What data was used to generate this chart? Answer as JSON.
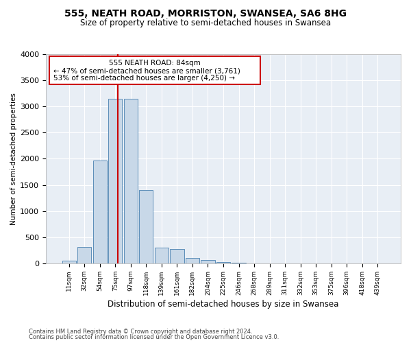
{
  "title": "555, NEATH ROAD, MORRISTON, SWANSEA, SA6 8HG",
  "subtitle": "Size of property relative to semi-detached houses in Swansea",
  "xlabel": "Distribution of semi-detached houses by size in Swansea",
  "ylabel": "Number of semi-detached properties",
  "footer_line1": "Contains HM Land Registry data © Crown copyright and database right 2024.",
  "footer_line2": "Contains public sector information licensed under the Open Government Licence v3.0.",
  "annotation_title": "555 NEATH ROAD: 84sqm",
  "annotation_line1": "← 47% of semi-detached houses are smaller (3,761)",
  "annotation_line2": "53% of semi-detached houses are larger (4,250) →",
  "bar_labels": [
    "11sqm",
    "32sqm",
    "54sqm",
    "75sqm",
    "97sqm",
    "118sqm",
    "139sqm",
    "161sqm",
    "182sqm",
    "204sqm",
    "225sqm",
    "246sqm",
    "268sqm",
    "289sqm",
    "311sqm",
    "332sqm",
    "353sqm",
    "375sqm",
    "396sqm",
    "418sqm",
    "439sqm"
  ],
  "bar_values": [
    55,
    310,
    1970,
    3150,
    3150,
    1400,
    300,
    280,
    110,
    70,
    30,
    10,
    5,
    5,
    3,
    2,
    1,
    1,
    1,
    1,
    1
  ],
  "property_line_x": 3.15,
  "bar_color": "#c8d8e8",
  "bar_edge_color": "#5b8db8",
  "property_line_color": "#cc0000",
  "annotation_box_color": "#cc0000",
  "background_color": "#e8eef5",
  "ylim": [
    0,
    4000
  ],
  "yticks": [
    0,
    500,
    1000,
    1500,
    2000,
    2500,
    3000,
    3500,
    4000
  ],
  "grid_color": "#ffffff"
}
